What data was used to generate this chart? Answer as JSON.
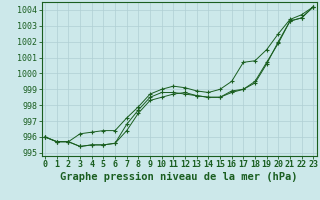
{
  "title": "Graphe pression niveau de la mer (hPa)",
  "background_color": "#cce8ea",
  "grid_color": "#b0cfd4",
  "line_color": "#1a5e20",
  "x_values": [
    0,
    1,
    2,
    3,
    4,
    5,
    6,
    7,
    8,
    9,
    10,
    11,
    12,
    13,
    14,
    15,
    16,
    17,
    18,
    19,
    20,
    21,
    22,
    23
  ],
  "series1": [
    996.0,
    995.7,
    995.7,
    995.4,
    995.5,
    995.5,
    995.6,
    996.4,
    997.5,
    998.3,
    998.5,
    998.7,
    998.8,
    998.6,
    998.5,
    998.5,
    998.9,
    999.0,
    999.4,
    1000.6,
    1002.0,
    1003.3,
    1003.5,
    1004.2
  ],
  "series2": [
    996.0,
    995.7,
    995.7,
    995.4,
    995.5,
    995.5,
    995.6,
    996.8,
    997.7,
    998.5,
    998.8,
    998.8,
    998.7,
    998.6,
    998.5,
    998.5,
    998.8,
    999.0,
    999.5,
    1000.7,
    1001.9,
    1003.3,
    1003.5,
    1004.2
  ],
  "series3": [
    996.0,
    995.7,
    995.7,
    996.2,
    996.3,
    996.4,
    996.4,
    997.2,
    997.9,
    998.7,
    999.0,
    999.2,
    999.1,
    998.9,
    998.8,
    999.0,
    999.5,
    1000.7,
    1000.8,
    1001.5,
    1002.5,
    1003.4,
    1003.7,
    1004.2
  ],
  "ylim": [
    994.8,
    1004.5
  ],
  "yticks": [
    995,
    996,
    997,
    998,
    999,
    1000,
    1001,
    1002,
    1003,
    1004
  ],
  "xlim": [
    -0.3,
    23.3
  ],
  "title_fontsize": 7.5,
  "tick_fontsize": 6.0
}
